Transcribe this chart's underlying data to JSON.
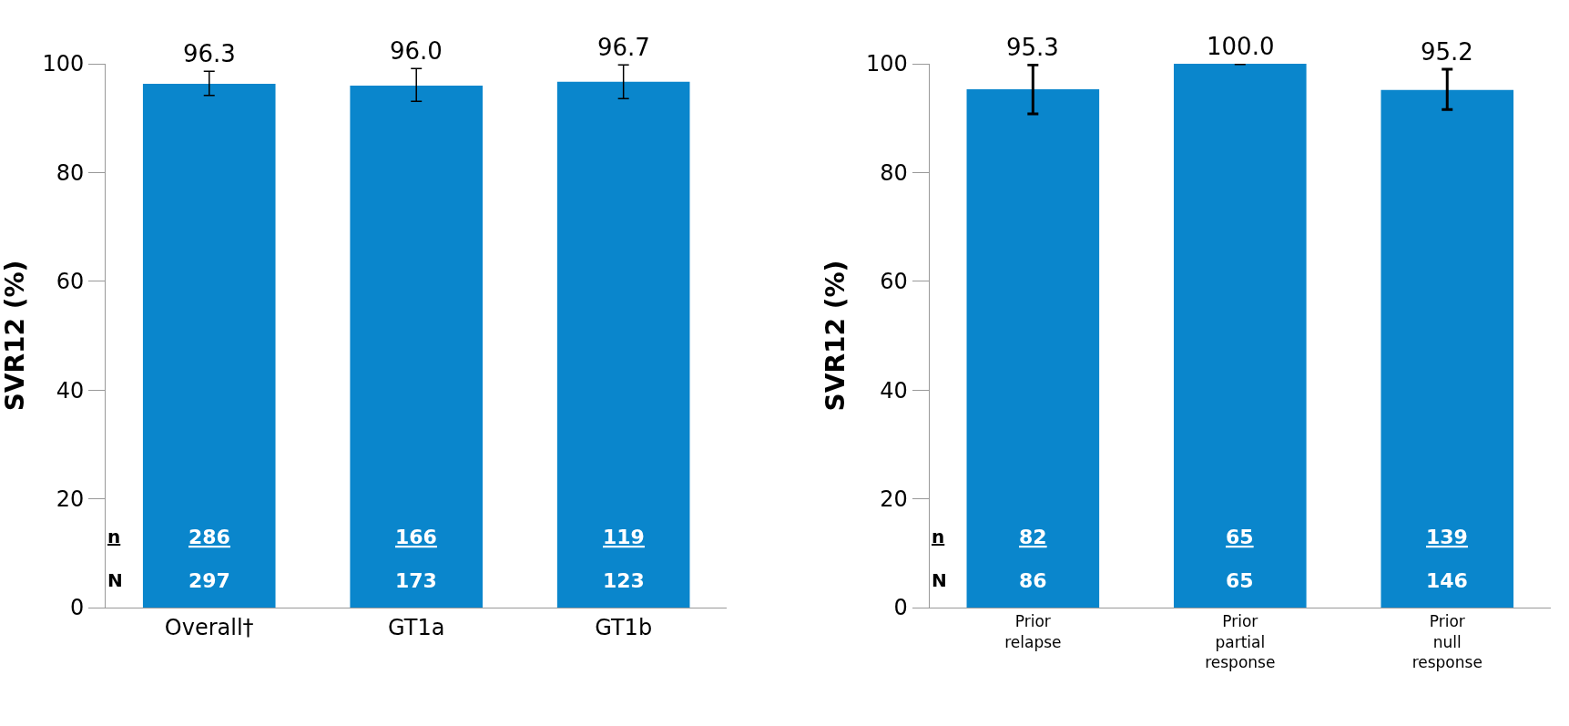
{
  "chart_data": [
    {
      "type": "bar",
      "ylabel": "SVR12 (%)",
      "categories": [
        "Overall†",
        "GT1a",
        "GT1b"
      ],
      "values": [
        96.3,
        96.0,
        96.7
      ],
      "value_labels": [
        "96.3",
        "96.0",
        "96.7"
      ],
      "color": "#0a86cc",
      "errors": [
        [
          94.2,
          98.6
        ],
        [
          93.1,
          99.1
        ],
        [
          93.6,
          99.8
        ]
      ],
      "ylim": [
        0,
        100
      ],
      "yticks": [
        0,
        20,
        40,
        60,
        80,
        100
      ],
      "annotations": [
        "n",
        "N",
        "286",
        "297",
        "166",
        "173",
        "119",
        "123"
      ]
    },
    {
      "type": "bar",
      "ylabel": "SVR12 (%)",
      "categories": [
        "Prior\nrelapse",
        "Prior\npartial\nresponse",
        "Prior\nnull\nresponse"
      ],
      "values": [
        95.3,
        100.0,
        95.2
      ],
      "value_labels": [
        "95.3",
        "100.0",
        "95.2"
      ],
      "color": "#0a86cc",
      "errors": [
        [
          90.8,
          99.8
        ],
        [
          100.0,
          100.0
        ],
        [
          91.6,
          99.0
        ]
      ],
      "ylim": [
        0,
        100
      ],
      "yticks": [
        0,
        20,
        40,
        60,
        80,
        100
      ],
      "annotations": [
        "n",
        "N",
        "82",
        "86",
        "65",
        "65",
        "139",
        "146"
      ]
    }
  ]
}
